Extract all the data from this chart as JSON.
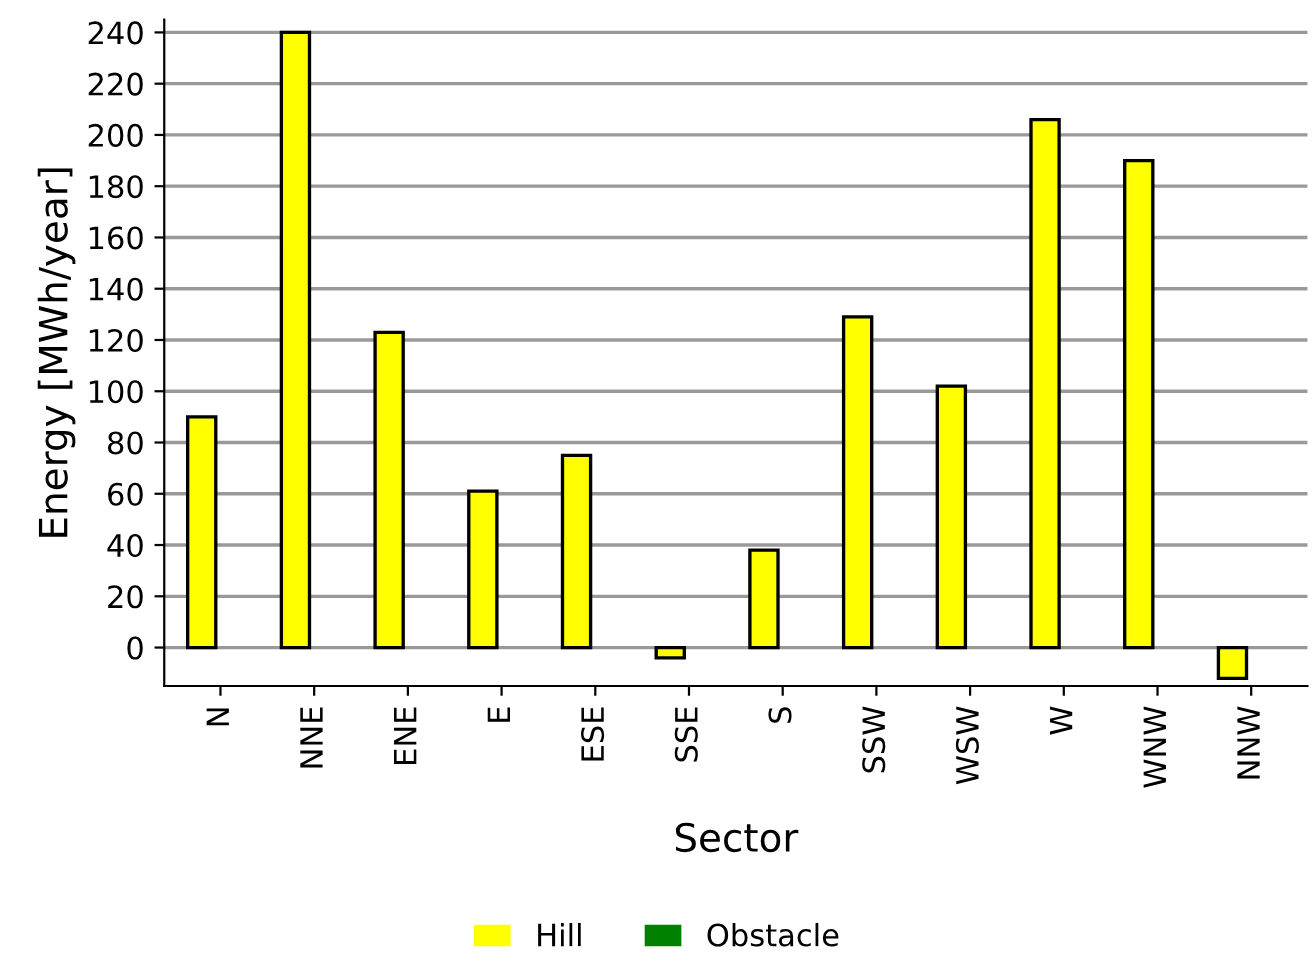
{
  "chart_data": {
    "type": "bar",
    "xlabel": "Sector",
    "ylabel": "Energy [MWh/year]",
    "categories": [
      "N",
      "NNE",
      "ENE",
      "E",
      "ESE",
      "SSE",
      "S",
      "SSW",
      "WSW",
      "W",
      "WNW",
      "NNW"
    ],
    "series": [
      {
        "name": "Hill",
        "color": "#ffff00",
        "values": [
          90,
          240,
          123,
          61,
          75,
          -4,
          38,
          129,
          102,
          206,
          190,
          -12
        ]
      },
      {
        "name": "Obstacle",
        "color": "#008000",
        "values": [
          null,
          null,
          null,
          null,
          null,
          null,
          null,
          null,
          null,
          null,
          null,
          null
        ]
      }
    ],
    "ylim": [
      -15,
      245
    ],
    "yticks": [
      0,
      20,
      40,
      60,
      80,
      100,
      120,
      140,
      160,
      180,
      200,
      220,
      240
    ],
    "grid": "y",
    "legend": "bottom"
  }
}
